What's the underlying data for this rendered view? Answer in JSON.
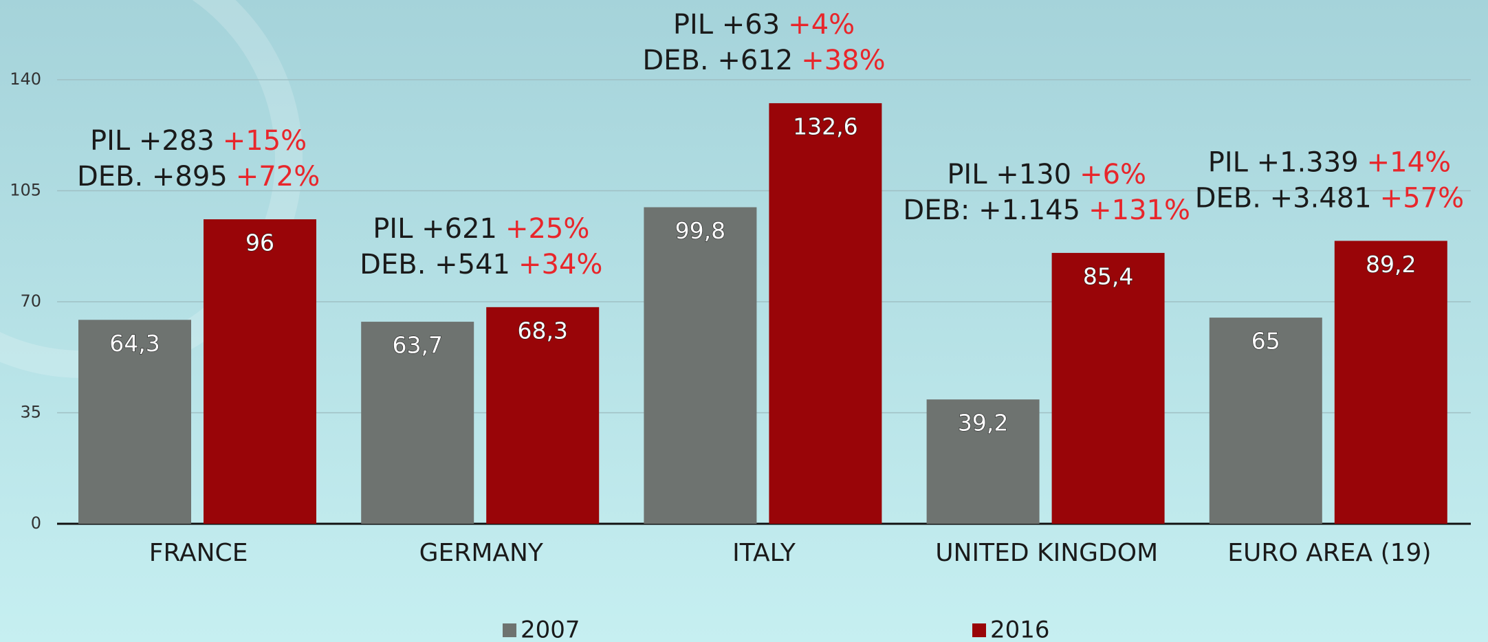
{
  "chart_data": {
    "type": "bar",
    "categories": [
      "FRANCE",
      "GERMANY",
      "ITALY",
      "UNITED KINGDOM",
      "EURO AREA (19)"
    ],
    "series": [
      {
        "name": "2007",
        "color": "#6e7370",
        "values": [
          64.3,
          63.7,
          99.8,
          39.2,
          65
        ],
        "value_labels": [
          "64,3",
          "63,7",
          "99,8",
          "39,2",
          "65"
        ]
      },
      {
        "name": "2016",
        "color": "#990508",
        "values": [
          96,
          68.3,
          132.6,
          85.4,
          89.2
        ],
        "value_labels": [
          "96",
          "68,3",
          "132,6",
          "85,4",
          "89,2"
        ]
      }
    ],
    "ylim": [
      0,
      140
    ],
    "yticks": [
      0,
      35,
      70,
      105,
      140
    ],
    "grid": true,
    "legend": "bottom",
    "annotations": [
      {
        "pil": "PIL +283",
        "pil_pct": "+15%",
        "deb": "DEB. +895",
        "deb_pct": "+72%"
      },
      {
        "pil": "PIL +621",
        "pil_pct": "+25%",
        "deb": "DEB. +541",
        "deb_pct": "+34%"
      },
      {
        "pil": "PIL +63",
        "pil_pct": "+4%",
        "deb": "DEB. +612",
        "deb_pct": "+38%"
      },
      {
        "pil": "PIL +130",
        "pil_pct": "+6%",
        "deb": "DEB: +1.145",
        "deb_pct": "+131%"
      },
      {
        "pil": "PIL +1.339",
        "pil_pct": "+14%",
        "deb": "DEB. +3.481",
        "deb_pct": "+57%"
      }
    ]
  }
}
